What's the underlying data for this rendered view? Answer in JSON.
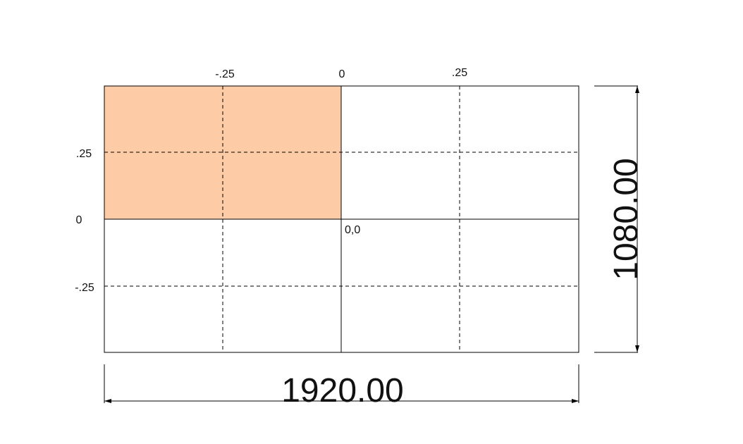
{
  "grid": {
    "x_ticks": [
      "-.25",
      "0",
      ".25"
    ],
    "y_ticks": [
      ".25",
      "0",
      "-.25"
    ],
    "origin_label": "0,0",
    "highlight": "top-left quadrant",
    "highlight_color": "#fdcca6",
    "line_color": "#000000"
  },
  "dimensions": {
    "width_label": "1920.00",
    "height_label": "1080.00"
  }
}
